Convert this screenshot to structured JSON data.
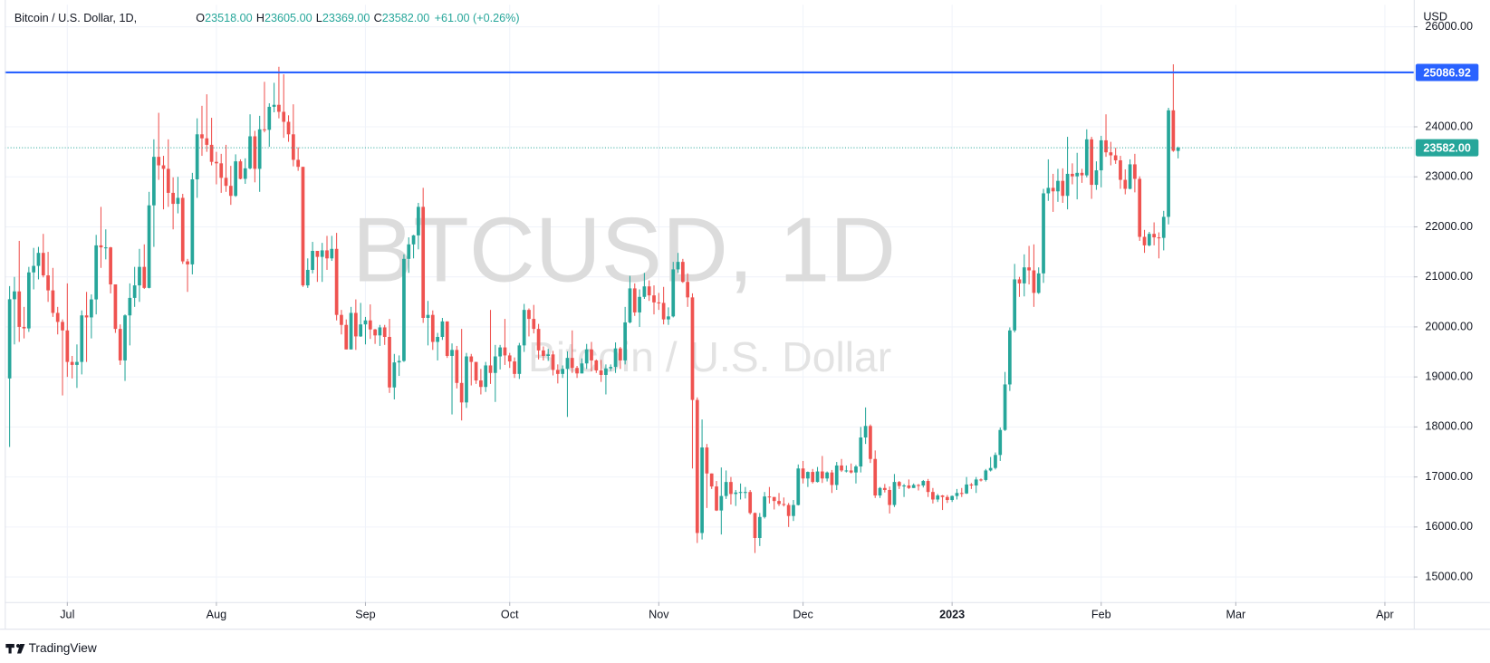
{
  "chart_data": {
    "type": "candlestick",
    "symbol": "Bitcoin / U.S. Dollar, 1D,",
    "legend": [
      {
        "label": "O",
        "value": "23518.00"
      },
      {
        "label": "H",
        "value": "23605.00"
      },
      {
        "label": "L",
        "value": "23369.00"
      },
      {
        "label": "C",
        "value": "23582.00"
      }
    ],
    "change": "+61.00 (+0.26%)",
    "watermark": "BTCUSD, 1D",
    "watermark_subtitle": "Bitcoin / U.S. Dollar",
    "currency": "USD",
    "brand": "TradingView",
    "up_color": "#26a69a",
    "down_color": "#ef5350",
    "grid": true,
    "xlim": [
      -1,
      292
    ],
    "xticks": [
      {
        "value": 12,
        "label": "Jul"
      },
      {
        "value": 43,
        "label": "Aug"
      },
      {
        "value": 74,
        "label": "Sep"
      },
      {
        "value": 104,
        "label": "Oct"
      },
      {
        "value": 135,
        "label": "Nov"
      },
      {
        "value": 165,
        "label": "Dec"
      },
      {
        "value": 196,
        "label": "2023"
      },
      {
        "value": 227,
        "label": "Feb"
      },
      {
        "value": 255,
        "label": "Mar"
      },
      {
        "value": 286,
        "label": "Apr"
      }
    ],
    "ylim": [
      14500,
      26440
    ],
    "yticks": [
      {
        "value": 15000,
        "label": "15000.00"
      },
      {
        "value": 16000,
        "label": "16000.00"
      },
      {
        "value": 17000,
        "label": "17000.00"
      },
      {
        "value": 18000,
        "label": "18000.00"
      },
      {
        "value": 19000,
        "label": "19000.00"
      },
      {
        "value": 20000,
        "label": "20000.00"
      },
      {
        "value": 21000,
        "label": "21000.00"
      },
      {
        "value": 22000,
        "label": "22000.00"
      },
      {
        "value": 23000,
        "label": "23000.00"
      },
      {
        "value": 24000,
        "label": "24000.00"
      },
      {
        "value": 26000,
        "label": "26000.00"
      }
    ],
    "hline": {
      "value": 25086.92,
      "label": "25086.92",
      "color": "#2962ff"
    },
    "last_price": {
      "value": 23582,
      "label": "23582.00",
      "color": "#26a69a"
    },
    "open": [
      18970,
      20553,
      20710,
      20000,
      19970,
      21090,
      21220,
      21480,
      21030,
      20730,
      20280,
      20100,
      19930,
      19300,
      19240,
      19300,
      20230,
      20190,
      20550,
      21630,
      21590,
      21590,
      20850,
      19960,
      19330,
      20230,
      20580,
      20830,
      21200,
      20780,
      22430,
      23400,
      23230,
      23160,
      22680,
      22460,
      22580,
      21310,
      21250,
      22950,
      23850,
      23770,
      23640,
      23300,
      23270,
      22980,
      22820,
      22620,
      23310,
      22960,
      23170,
      23810,
      23160,
      23950,
      23940,
      24400,
      24440,
      24300,
      24100,
      23850,
      23340,
      23200,
      20830,
      21140,
      21520,
      21400,
      21530,
      21370,
      21560,
      20240,
      20040,
      19550,
      20280,
      19810,
      20050,
      20130,
      19950,
      19830,
      19990,
      19800,
      18790,
      19290,
      19320,
      21360,
      21650,
      21830,
      22400,
      20180,
      20240,
      19700,
      19800,
      20110,
      19420,
      19540,
      18880,
      18490,
      19410,
      19300,
      18930,
      18800,
      19230,
      19080,
      19410,
      19590,
      19430,
      19310,
      19060,
      19630,
      20340,
      20160,
      19960,
      19530,
      19420,
      19450,
      19140,
      19060,
      19160,
      19380,
      19180,
      19070,
      19270,
      19550,
      19330,
      19130,
      19040,
      19170,
      19200,
      19570,
      19330,
      20090,
      20770,
      20290,
      20600,
      20810,
      20630,
      20490,
      20480,
      20150,
      20210,
      21150,
      21300,
      20900,
      20590,
      18540,
      15880,
      17590,
      17070,
      16810,
      16330,
      16620,
      16900,
      16660,
      16690,
      16700,
      16700,
      16280,
      15780,
      16200,
      16610,
      16600,
      16520,
      16460,
      16440,
      16220,
      16440,
      17170,
      16970,
      17100,
      16900,
      17110,
      16970,
      17090,
      16840,
      17230,
      17130,
      17130,
      17090,
      17210,
      17790,
      18020,
      17360,
      16630,
      16780,
      16740,
      16440,
      16900,
      16820,
      16830,
      16780,
      16840,
      16830,
      16920,
      16700,
      16550,
      16630,
      16600,
      16540,
      16620,
      16680,
      16670,
      16850,
      16830,
      16950,
      16940,
      17130,
      17180,
      17440,
      17940,
      18850,
      19930,
      20950,
      20870,
      21190,
      21130,
      20680,
      21070,
      22670,
      22780,
      22710,
      22920,
      22620,
      23060,
      23010,
      23080,
      23030,
      23750,
      22840,
      23130,
      23730,
      23490,
      23430,
      23330,
      22940,
      22760,
      23250,
      22960,
      21800,
      21630,
      21860,
      21790,
      21780,
      22200,
      24330,
      23518
    ],
    "high": [
      20815,
      21000,
      21720,
      20400,
      21200,
      21580,
      21600,
      21860,
      21500,
      21180,
      20400,
      20150,
      20870,
      19420,
      19650,
      20330,
      20700,
      20650,
      21840,
      22400,
      21950,
      21600,
      20850,
      20050,
      20250,
      20870,
      21200,
      21560,
      21650,
      22700,
      23750,
      24280,
      23420,
      23750,
      22990,
      23000,
      22660,
      21360,
      23080,
      24170,
      24420,
      24650,
      24180,
      23500,
      23460,
      23640,
      23220,
      23450,
      23350,
      23370,
      24250,
      23920,
      24220,
      24900,
      24470,
      24880,
      25200,
      25050,
      24230,
      24450,
      23590,
      23200,
      21370,
      21700,
      21520,
      21680,
      21820,
      21820,
      21880,
      20340,
      20150,
      20400,
      20550,
      20480,
      20200,
      20450,
      19960,
      20040,
      20040,
      20160,
      19460,
      19430,
      21450,
      21790,
      21840,
      22480,
      22780,
      20520,
      20330,
      19880,
      20180,
      20110,
      19670,
      19620,
      19960,
      19480,
      19460,
      19300,
      19160,
      19300,
      20340,
      19640,
      19640,
      20160,
      19480,
      19390,
      19680,
      20460,
      20370,
      20440,
      20060,
      19610,
      19560,
      19520,
      19250,
      19230,
      19510,
      19930,
      19220,
      19370,
      19660,
      19700,
      19350,
      19340,
      19250,
      19250,
      19690,
      19600,
      20400,
      21020,
      20870,
      20750,
      21080,
      20930,
      20830,
      20680,
      20800,
      20390,
      21300,
      21480,
      21360,
      21070,
      20670,
      18590,
      18150,
      17660,
      17070,
      16920,
      17190,
      17130,
      17000,
      16740,
      16870,
      16800,
      16740,
      16290,
      16280,
      16700,
      16800,
      16600,
      16680,
      16590,
      16480,
      16540,
      17250,
      17320,
      17110,
      17160,
      17200,
      17420,
      17110,
      17140,
      17300,
      17360,
      17230,
      17270,
      17240,
      18000,
      18390,
      18050,
      17530,
      16800,
      16860,
      16810,
      17060,
      16920,
      16860,
      16950,
      16870,
      16860,
      16940,
      16960,
      16780,
      16660,
      16640,
      16640,
      16630,
      16760,
      16780,
      17000,
      16880,
      17000,
      16970,
      17160,
      17400,
      17490,
      17990,
      19100,
      19990,
      21260,
      21000,
      21450,
      21620,
      21650,
      21190,
      22760,
      23350,
      23060,
      23160,
      23170,
      23800,
      23270,
      23480,
      23160,
      23950,
      23800,
      23310,
      23820,
      24250,
      23700,
      23580,
      23420,
      23150,
      23350,
      23460,
      23010,
      21940,
      21900,
      22090,
      21890,
      22320,
      24380,
      25250,
      23605
    ],
    "low": [
      17600,
      19650,
      19700,
      19770,
      19900,
      20750,
      20950,
      20990,
      20500,
      20200,
      19850,
      18630,
      19000,
      18970,
      18780,
      19050,
      19300,
      19770,
      20250,
      21180,
      21350,
      20670,
      19880,
      19240,
      18920,
      19630,
      20400,
      20500,
      20760,
      20770,
      21600,
      22940,
      22350,
      22400,
      21950,
      22270,
      21260,
      20700,
      21050,
      22580,
      23420,
      23500,
      23230,
      22850,
      22680,
      22700,
      22440,
      22600,
      22950,
      22860,
      23150,
      22890,
      22700,
      23890,
      23600,
      24290,
      24170,
      23780,
      23700,
      23210,
      23120,
      20800,
      20780,
      21070,
      20900,
      20900,
      21140,
      21320,
      20130,
      19850,
      19550,
      19550,
      19540,
      19800,
      19650,
      19760,
      19660,
      19620,
      19640,
      18680,
      18550,
      19020,
      19300,
      21080,
      21370,
      21550,
      20080,
      19630,
      19540,
      19330,
      19740,
      19380,
      18250,
      18770,
      18130,
      18380,
      18830,
      18860,
      18650,
      18700,
      18860,
      18500,
      19150,
      19240,
      19180,
      18980,
      18960,
      19500,
      19810,
      19870,
      19350,
      19330,
      19320,
      19030,
      18870,
      18980,
      18200,
      19080,
      18980,
      19070,
      19160,
      19110,
      19080,
      18900,
      18650,
      19120,
      19080,
      19160,
      19250,
      20070,
      20220,
      20000,
      20560,
      20520,
      20250,
      20340,
      20050,
      20040,
      20190,
      21080,
      20880,
      20400,
      17170,
      15680,
      15750,
      16380,
      16760,
      16320,
      15850,
      16560,
      16450,
      16420,
      16550,
      16570,
      16250,
      15480,
      15620,
      16170,
      16470,
      16350,
      16420,
      16410,
      16000,
      16120,
      16430,
      16870,
      16800,
      16870,
      16890,
      16880,
      16910,
      16680,
      16740,
      17100,
      17090,
      17070,
      16870,
      17090,
      17660,
      17280,
      16580,
      16580,
      16690,
      16270,
      16400,
      16760,
      16600,
      16760,
      16780,
      16730,
      16790,
      16600,
      16470,
      16500,
      16340,
      16480,
      16500,
      16550,
      16600,
      16660,
      16760,
      16680,
      16910,
      16910,
      17110,
      17150,
      17320,
      17920,
      18720,
      19890,
      20600,
      20610,
      20850,
      20400,
      20660,
      20880,
      22520,
      22300,
      22500,
      22480,
      22350,
      22850,
      22550,
      22880,
      22990,
      22560,
      22740,
      22790,
      23400,
      23230,
      23260,
      22760,
      22650,
      22750,
      22690,
      21720,
      21480,
      21610,
      21630,
      21370,
      21530,
      22050,
      23500,
      23369
    ],
    "close": [
      20553,
      20710,
      20000,
      19970,
      21090,
      21220,
      21480,
      21030,
      20730,
      20280,
      20100,
      19930,
      19300,
      19240,
      19300,
      20230,
      20190,
      20550,
      21630,
      21590,
      21590,
      20850,
      19960,
      19330,
      20230,
      20580,
      20830,
      21200,
      20780,
      22430,
      23400,
      23230,
      23160,
      22680,
      22460,
      22580,
      21310,
      21250,
      22950,
      23850,
      23770,
      23640,
      23300,
      23270,
      22980,
      22820,
      22620,
      23310,
      22960,
      23170,
      23810,
      23160,
      23950,
      23940,
      24400,
      24440,
      24300,
      24100,
      23850,
      23340,
      23200,
      20830,
      21140,
      21520,
      21400,
      21530,
      21370,
      21560,
      20240,
      20040,
      19550,
      20280,
      19810,
      20050,
      20130,
      19950,
      19830,
      19990,
      19800,
      18790,
      19290,
      19320,
      21360,
      21650,
      21830,
      22400,
      20180,
      20240,
      19700,
      19800,
      20110,
      19420,
      19540,
      18880,
      18490,
      19410,
      19300,
      18930,
      18800,
      19230,
      19080,
      19410,
      19590,
      19430,
      19310,
      19060,
      19630,
      20340,
      20160,
      19960,
      19530,
      19420,
      19450,
      19140,
      19060,
      19160,
      19380,
      19180,
      19070,
      19270,
      19550,
      19330,
      19130,
      19040,
      19170,
      19200,
      19570,
      19330,
      20090,
      20770,
      20290,
      20600,
      20810,
      20630,
      20490,
      20480,
      20150,
      20210,
      21150,
      21300,
      20900,
      20590,
      18540,
      15880,
      17590,
      17070,
      16810,
      16330,
      16620,
      16900,
      16660,
      16690,
      16700,
      16700,
      16280,
      15780,
      16200,
      16610,
      16600,
      16520,
      16460,
      16440,
      16220,
      16440,
      17170,
      16970,
      17100,
      16900,
      17110,
      16970,
      17090,
      16840,
      17230,
      17130,
      17130,
      17090,
      17210,
      17790,
      18020,
      17360,
      16630,
      16780,
      16740,
      16440,
      16900,
      16820,
      16830,
      16780,
      16840,
      16830,
      16920,
      16700,
      16550,
      16630,
      16600,
      16540,
      16620,
      16680,
      16670,
      16850,
      16830,
      16950,
      16940,
      17130,
      17180,
      17440,
      17940,
      18850,
      19930,
      20950,
      20870,
      21190,
      21130,
      20680,
      21070,
      22670,
      22780,
      22710,
      22920,
      22620,
      23060,
      23010,
      23080,
      23030,
      23750,
      22840,
      23130,
      23730,
      23490,
      23430,
      23330,
      22940,
      22760,
      23250,
      22960,
      21800,
      21630,
      21860,
      21790,
      21780,
      22200,
      24330,
      23521,
      23582
    ]
  }
}
